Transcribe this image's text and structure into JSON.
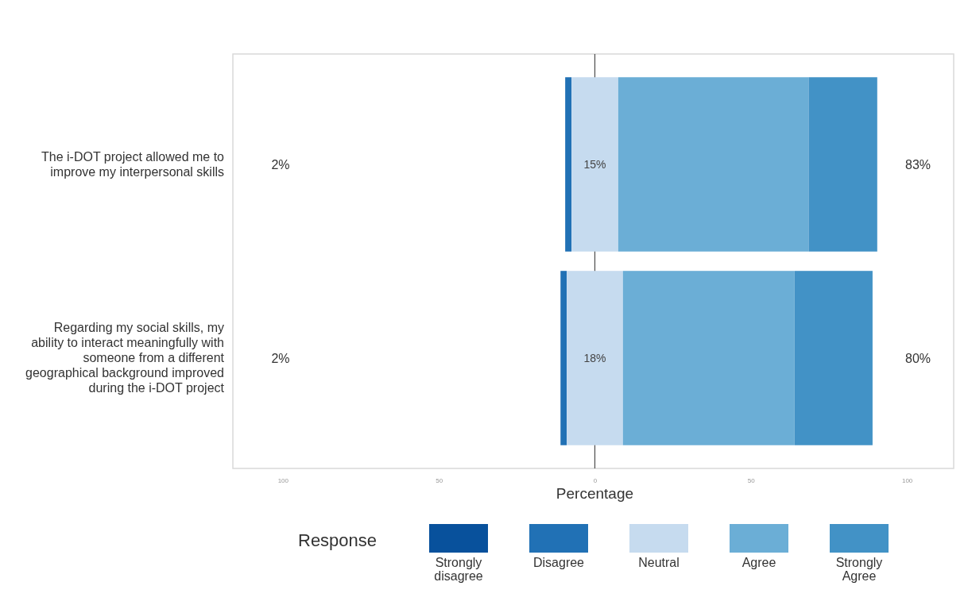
{
  "chart_data": {
    "type": "bar",
    "orientation": "horizontal",
    "categories": [
      "The i-DOT project allowed me to improve my interpersonal skills",
      "Regarding my social skills, my ability to interact meaningfully with someone from a different geographical background improved during the i-DOT project"
    ],
    "series": [
      {
        "name": "Strongly disagree",
        "color": "#08519c",
        "values": [
          0,
          0
        ]
      },
      {
        "name": "Disagree",
        "color": "#2171b5",
        "values": [
          2,
          2
        ],
        "base": [
          -9.5,
          -11
        ]
      },
      {
        "name": "Neutral",
        "color": "#c6dbef",
        "values": [
          15,
          18
        ],
        "base": [
          -7.5,
          -9
        ],
        "value_labels": [
          "15%",
          "18%"
        ]
      },
      {
        "name": "Agree",
        "color": "#6baed6",
        "values": [
          61,
          55
        ],
        "base": [
          7.5,
          9
        ]
      },
      {
        "name": "Strongly Agree",
        "color": "#4292c6",
        "values": [
          22,
          25
        ],
        "base": [
          68.5,
          64
        ]
      }
    ],
    "xlim": [
      -116,
      115
    ],
    "xticks": [
      {
        "value": -100,
        "label": "100"
      },
      {
        "value": -50,
        "label": "50"
      },
      0,
      50,
      100
    ],
    "xlabel": "Percentage",
    "legend": "bottom",
    "legend_title": "Response",
    "grid": false,
    "ref_lines": [
      {
        "axis": "x",
        "value": 0,
        "color": "#555555"
      }
    ],
    "annotations": [
      "2%",
      "83%",
      "2%",
      "80%"
    ]
  }
}
